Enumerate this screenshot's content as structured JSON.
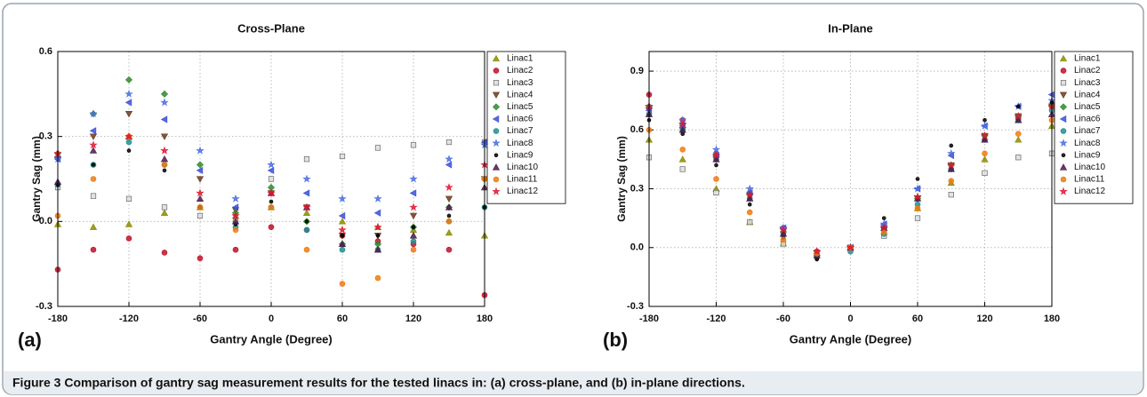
{
  "caption": "Figure 3 Comparison of gantry sag measurement results for the tested linacs in: (a) cross-plane, and (b) in-plane directions.",
  "chart_data": [
    {
      "type": "scatter",
      "title": "Cross-Plane",
      "panel_label": "(a)",
      "x_label": "Gantry Angle (Degree)",
      "y_label": "Gantry Sag (mm)",
      "x": [
        -180,
        -150,
        -120,
        -90,
        -60,
        -30,
        0,
        30,
        60,
        90,
        120,
        150,
        180
      ],
      "xlim": [
        -180,
        180
      ],
      "xticks": [
        -180,
        -120,
        -60,
        0,
        60,
        120,
        180
      ],
      "ylim": [
        -0.3,
        0.6
      ],
      "yticks": [
        -0.3,
        {
          "value": 0,
          "label": "0.0"
        },
        0.3,
        0.6
      ],
      "grid": true,
      "series": [
        {
          "name": "Linac1",
          "color": "#8c8c00",
          "marker": "triangle",
          "values": [
            -0.01,
            -0.02,
            -0.01,
            0.03,
            0.05,
            0.02,
            0.05,
            0.03,
            0.0,
            -0.02,
            -0.03,
            -0.04,
            -0.05
          ]
        },
        {
          "name": "Linac2",
          "color": "#c0102a",
          "marker": "circle",
          "values": [
            -0.17,
            -0.1,
            -0.06,
            -0.11,
            -0.13,
            -0.1,
            -0.02,
            -0.03,
            -0.05,
            -0.07,
            -0.08,
            -0.1,
            -0.26
          ]
        },
        {
          "name": "Linac3",
          "color": "#555555",
          "marker": "square",
          "values": [
            0.12,
            0.09,
            0.08,
            0.05,
            0.02,
            0.0,
            0.15,
            0.22,
            0.23,
            0.26,
            0.27,
            0.28,
            0.28
          ]
        },
        {
          "name": "Linac4",
          "color": "#6b3a1e",
          "marker": "down-triangle",
          "values": [
            0.22,
            0.3,
            0.38,
            0.3,
            0.15,
            0.04,
            0.1,
            0.05,
            -0.05,
            -0.05,
            0.02,
            0.08,
            0.15
          ]
        },
        {
          "name": "Linac5",
          "color": "#2e8b2e",
          "marker": "diamond",
          "values": [
            0.24,
            0.38,
            0.5,
            0.45,
            0.2,
            0.03,
            0.12,
            0.0,
            -0.08,
            -0.08,
            -0.02,
            0.05,
            0.15
          ]
        },
        {
          "name": "Linac6",
          "color": "#3a4fd8",
          "marker": "left-triangle",
          "values": [
            0.22,
            0.32,
            0.42,
            0.36,
            0.18,
            0.05,
            0.18,
            0.1,
            0.02,
            0.03,
            0.1,
            0.2,
            0.28
          ]
        },
        {
          "name": "Linac7",
          "color": "#1f8f8f",
          "marker": "circle",
          "values": [
            0.13,
            0.2,
            0.28,
            0.2,
            0.05,
            -0.02,
            0.05,
            -0.03,
            -0.1,
            -0.1,
            -0.07,
            0.0,
            0.05
          ]
        },
        {
          "name": "Linac8",
          "color": "#4a6fe0",
          "marker": "star",
          "values": [
            0.22,
            0.38,
            0.45,
            0.42,
            0.25,
            0.08,
            0.2,
            0.15,
            0.08,
            0.08,
            0.15,
            0.22,
            0.27
          ]
        },
        {
          "name": "Linac9",
          "color": "#000000",
          "marker": "dot",
          "values": [
            0.13,
            0.2,
            0.25,
            0.18,
            0.05,
            -0.01,
            0.07,
            0.0,
            -0.05,
            -0.05,
            -0.02,
            0.02,
            0.05
          ]
        },
        {
          "name": "Linac10",
          "color": "#4b1a4b",
          "marker": "triangle",
          "values": [
            0.14,
            0.25,
            0.3,
            0.22,
            0.08,
            0.0,
            0.1,
            0.05,
            -0.08,
            -0.1,
            -0.05,
            0.05,
            0.12
          ]
        },
        {
          "name": "Linac11",
          "color": "#f07a10",
          "marker": "circle",
          "values": [
            0.02,
            0.15,
            0.3,
            0.2,
            0.05,
            -0.03,
            0.05,
            -0.1,
            -0.22,
            -0.2,
            -0.1,
            0.0,
            0.15
          ]
        },
        {
          "name": "Linac12",
          "color": "#e01830",
          "marker": "star",
          "values": [
            0.24,
            0.27,
            0.3,
            0.25,
            0.1,
            0.02,
            0.1,
            0.05,
            -0.03,
            -0.02,
            0.05,
            0.12,
            0.2
          ]
        }
      ]
    },
    {
      "type": "scatter",
      "title": "In-Plane",
      "panel_label": "(b)",
      "x_label": "Gantry Angle (Degree)",
      "y_label": "Gantry Sag (mm)",
      "x": [
        -180,
        -150,
        -120,
        -90,
        -60,
        -30,
        0,
        30,
        60,
        90,
        120,
        150,
        180
      ],
      "xlim": [
        -180,
        180
      ],
      "xticks": [
        -180,
        -120,
        -60,
        0,
        60,
        120,
        180
      ],
      "ylim": [
        -0.3,
        1.0
      ],
      "yticks": [
        -0.3,
        {
          "value": 0,
          "label": "0.0"
        },
        0.3,
        0.6,
        0.9
      ],
      "grid": true,
      "series": [
        {
          "name": "Linac1",
          "color": "#8c8c00",
          "marker": "triangle",
          "values": [
            0.55,
            0.45,
            0.3,
            0.13,
            0.02,
            -0.03,
            0.0,
            0.08,
            0.2,
            0.33,
            0.45,
            0.55,
            0.62
          ]
        },
        {
          "name": "Linac2",
          "color": "#c0102a",
          "marker": "circle",
          "values": [
            0.78,
            0.65,
            0.48,
            0.28,
            0.1,
            -0.02,
            0.0,
            0.1,
            0.25,
            0.4,
            0.55,
            0.66,
            0.72
          ]
        },
        {
          "name": "Linac3",
          "color": "#555555",
          "marker": "square",
          "values": [
            0.46,
            0.4,
            0.28,
            0.13,
            0.02,
            -0.03,
            0.0,
            0.06,
            0.15,
            0.27,
            0.38,
            0.46,
            0.48
          ]
        },
        {
          "name": "Linac4",
          "color": "#6b3a1e",
          "marker": "down-triangle",
          "values": [
            0.7,
            0.6,
            0.45,
            0.26,
            0.09,
            -0.03,
            0.0,
            0.1,
            0.25,
            0.42,
            0.57,
            0.67,
            0.72
          ]
        },
        {
          "name": "Linac5",
          "color": "#2e8b2e",
          "marker": "diamond",
          "values": [
            0.72,
            0.63,
            0.47,
            0.27,
            0.08,
            -0.04,
            0.0,
            0.1,
            0.25,
            0.42,
            0.57,
            0.67,
            0.72
          ]
        },
        {
          "name": "Linac6",
          "color": "#3a4fd8",
          "marker": "left-triangle",
          "values": [
            0.7,
            0.62,
            0.47,
            0.28,
            0.1,
            -0.03,
            0.0,
            0.12,
            0.3,
            0.47,
            0.62,
            0.72,
            0.78
          ]
        },
        {
          "name": "Linac7",
          "color": "#1f8f8f",
          "marker": "circle",
          "values": [
            0.68,
            0.6,
            0.45,
            0.25,
            0.07,
            -0.05,
            -0.02,
            0.07,
            0.22,
            0.4,
            0.55,
            0.65,
            0.7
          ]
        },
        {
          "name": "Linac8",
          "color": "#4a6fe0",
          "marker": "star",
          "values": [
            0.72,
            0.65,
            0.5,
            0.3,
            0.1,
            -0.02,
            0.0,
            0.12,
            0.3,
            0.48,
            0.62,
            0.72,
            0.75
          ]
        },
        {
          "name": "Linac9",
          "color": "#000000",
          "marker": "dot",
          "values": [
            0.65,
            0.58,
            0.42,
            0.22,
            0.05,
            -0.06,
            0.0,
            0.15,
            0.35,
            0.52,
            0.65,
            0.72,
            0.74
          ]
        },
        {
          "name": "Linac10",
          "color": "#4b1a4b",
          "marker": "triangle",
          "values": [
            0.68,
            0.6,
            0.45,
            0.25,
            0.07,
            -0.04,
            0.0,
            0.1,
            0.25,
            0.4,
            0.55,
            0.65,
            0.68
          ]
        },
        {
          "name": "Linac11",
          "color": "#f07a10",
          "marker": "circle",
          "values": [
            0.6,
            0.5,
            0.35,
            0.18,
            0.04,
            -0.03,
            0.0,
            0.08,
            0.2,
            0.34,
            0.48,
            0.58,
            0.65
          ]
        },
        {
          "name": "Linac12",
          "color": "#e01830",
          "marker": "star",
          "values": [
            0.72,
            0.63,
            0.47,
            0.27,
            0.09,
            -0.02,
            0.0,
            0.1,
            0.26,
            0.42,
            0.57,
            0.67,
            0.72
          ]
        }
      ]
    }
  ]
}
